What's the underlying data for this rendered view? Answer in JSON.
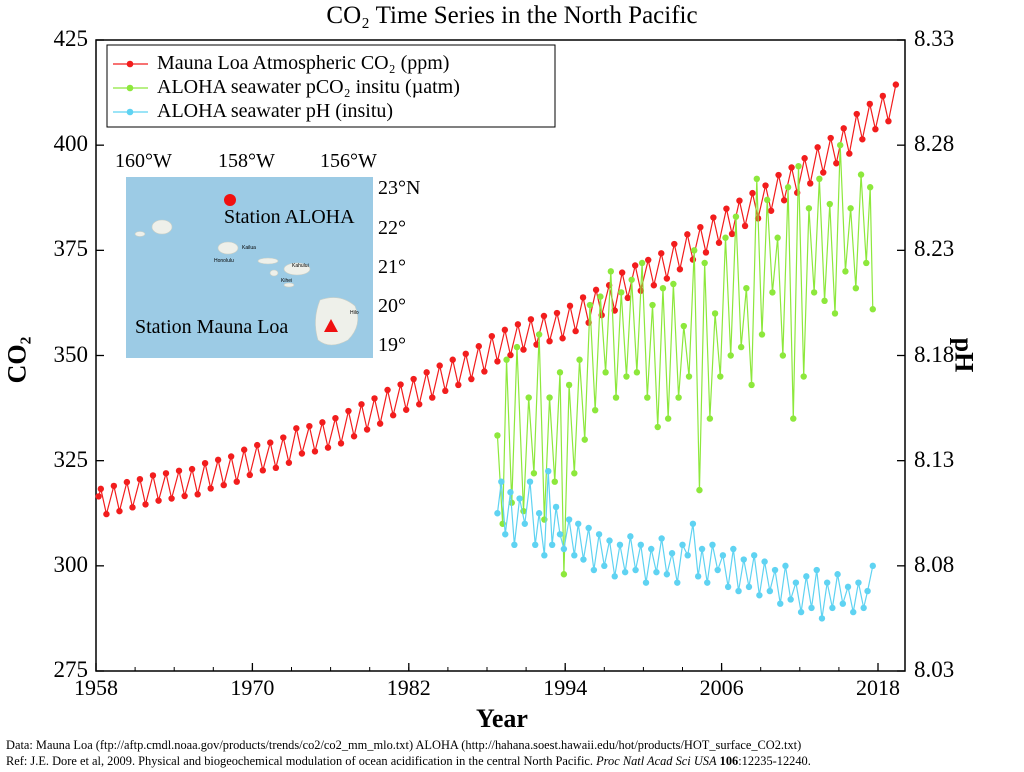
{
  "chart_data": {
    "type": "line",
    "title": "CO₂ Time Series in the North Pacific",
    "xlabel": "Year",
    "ylabel": "CO₂",
    "ylabel_right": "pH",
    "xlim": [
      1958,
      2020
    ],
    "ylim": [
      275,
      425
    ],
    "ylim_right": [
      8.03,
      8.33
    ],
    "x_ticks": [
      "1958",
      "1970",
      "1982",
      "1994",
      "2006",
      "2018"
    ],
    "y_ticks": [
      "275",
      "300",
      "325",
      "350",
      "375",
      "400",
      "425"
    ],
    "y_ticks_right": [
      "8.03",
      "8.08",
      "8.13",
      "8.18",
      "8.23",
      "8.28",
      "8.33"
    ],
    "grid": false,
    "legend_position": "top-left",
    "series": [
      {
        "name": "Mauna Loa Atmospheric CO₂ (ppm)",
        "color": "#f21d1d",
        "axis": "left",
        "points": [
          [
            1958.2,
            316.5
          ],
          [
            1958.37,
            318.3
          ],
          [
            1958.8,
            312.3
          ],
          [
            1959.37,
            319.0
          ],
          [
            1959.8,
            313.0
          ],
          [
            1960.37,
            319.9
          ],
          [
            1960.8,
            313.9
          ],
          [
            1961.37,
            320.6
          ],
          [
            1961.8,
            314.6
          ],
          [
            1962.37,
            321.5
          ],
          [
            1962.8,
            315.5
          ],
          [
            1963.37,
            322.0
          ],
          [
            1963.8,
            316.0
          ],
          [
            1964.37,
            322.6
          ],
          [
            1964.8,
            316.6
          ],
          [
            1965.37,
            323.0
          ],
          [
            1965.8,
            317.0
          ],
          [
            1966.37,
            324.4
          ],
          [
            1966.8,
            318.4
          ],
          [
            1967.37,
            325.2
          ],
          [
            1967.8,
            319.2
          ],
          [
            1968.37,
            326.0
          ],
          [
            1968.8,
            320.0
          ],
          [
            1969.37,
            327.6
          ],
          [
            1969.8,
            321.6
          ],
          [
            1970.37,
            328.7
          ],
          [
            1970.8,
            322.7
          ],
          [
            1971.37,
            329.3
          ],
          [
            1971.8,
            323.3
          ],
          [
            1972.37,
            330.5
          ],
          [
            1972.8,
            324.5
          ],
          [
            1973.37,
            332.7
          ],
          [
            1973.8,
            326.7
          ],
          [
            1974.37,
            333.2
          ],
          [
            1974.8,
            327.2
          ],
          [
            1975.37,
            334.1
          ],
          [
            1975.8,
            328.1
          ],
          [
            1976.37,
            335.1
          ],
          [
            1976.8,
            329.1
          ],
          [
            1977.37,
            336.8
          ],
          [
            1977.8,
            330.8
          ],
          [
            1978.37,
            338.4
          ],
          [
            1978.8,
            332.4
          ],
          [
            1979.37,
            339.8
          ],
          [
            1979.8,
            333.8
          ],
          [
            1980.37,
            341.8
          ],
          [
            1980.8,
            335.8
          ],
          [
            1981.37,
            343.1
          ],
          [
            1981.8,
            337.1
          ],
          [
            1982.37,
            344.4
          ],
          [
            1982.8,
            338.4
          ],
          [
            1983.37,
            346.0
          ],
          [
            1983.8,
            340.0
          ],
          [
            1984.37,
            347.6
          ],
          [
            1984.8,
            341.6
          ],
          [
            1985.37,
            349.0
          ],
          [
            1985.8,
            343.0
          ],
          [
            1986.37,
            350.4
          ],
          [
            1986.8,
            344.4
          ],
          [
            1987.37,
            352.2
          ],
          [
            1987.8,
            346.2
          ],
          [
            1988.37,
            354.6
          ],
          [
            1988.8,
            348.6
          ],
          [
            1989.37,
            356.1
          ],
          [
            1989.8,
            350.1
          ],
          [
            1990.37,
            357.4
          ],
          [
            1990.8,
            351.4
          ],
          [
            1991.37,
            358.6
          ],
          [
            1991.8,
            352.6
          ],
          [
            1992.37,
            359.4
          ],
          [
            1992.8,
            353.4
          ],
          [
            1993.37,
            360.1
          ],
          [
            1993.8,
            354.1
          ],
          [
            1994.37,
            361.8
          ],
          [
            1994.8,
            355.8
          ],
          [
            1995.37,
            363.8
          ],
          [
            1995.8,
            357.8
          ],
          [
            1996.37,
            365.6
          ],
          [
            1996.8,
            359.6
          ],
          [
            1997.37,
            366.7
          ],
          [
            1997.8,
            360.7
          ],
          [
            1998.37,
            369.7
          ],
          [
            1998.8,
            363.7
          ],
          [
            1999.37,
            371.4
          ],
          [
            1999.8,
            365.4
          ],
          [
            2000.37,
            372.7
          ],
          [
            2000.8,
            366.7
          ],
          [
            2001.37,
            374.3
          ],
          [
            2001.8,
            368.3
          ],
          [
            2002.37,
            376.5
          ],
          [
            2002.8,
            370.5
          ],
          [
            2003.37,
            378.8
          ],
          [
            2003.8,
            372.8
          ],
          [
            2004.37,
            380.5
          ],
          [
            2004.8,
            374.5
          ],
          [
            2005.37,
            382.8
          ],
          [
            2005.8,
            376.8
          ],
          [
            2006.37,
            384.9
          ],
          [
            2006.8,
            378.9
          ],
          [
            2007.37,
            386.8
          ],
          [
            2007.8,
            380.8
          ],
          [
            2008.37,
            388.6
          ],
          [
            2008.8,
            382.6
          ],
          [
            2009.37,
            390.4
          ],
          [
            2009.8,
            384.4
          ],
          [
            2010.37,
            392.9
          ],
          [
            2010.8,
            386.9
          ],
          [
            2011.37,
            394.7
          ],
          [
            2011.8,
            388.7
          ],
          [
            2012.37,
            396.9
          ],
          [
            2012.8,
            390.9
          ],
          [
            2013.37,
            399.5
          ],
          [
            2013.8,
            393.5
          ],
          [
            2014.37,
            401.7
          ],
          [
            2014.8,
            395.7
          ],
          [
            2015.37,
            404.0
          ],
          [
            2015.8,
            398.0
          ],
          [
            2016.37,
            407.4
          ],
          [
            2016.8,
            401.4
          ],
          [
            2017.37,
            409.8
          ],
          [
            2017.8,
            403.8
          ],
          [
            2018.37,
            411.7
          ],
          [
            2018.8,
            405.7
          ],
          [
            2019.37,
            414.4
          ]
        ]
      },
      {
        "name": "ALOHA seawater pCO₂ insitu (µatm)",
        "color": "#8de83c",
        "axis": "left",
        "points": [
          [
            1988.8,
            331
          ],
          [
            1989.2,
            310
          ],
          [
            1989.5,
            349
          ],
          [
            1989.9,
            315
          ],
          [
            1990.3,
            352
          ],
          [
            1990.8,
            313
          ],
          [
            1991.2,
            340
          ],
          [
            1991.6,
            322
          ],
          [
            1992.0,
            355
          ],
          [
            1992.4,
            311
          ],
          [
            1992.8,
            340
          ],
          [
            1993.2,
            320
          ],
          [
            1993.6,
            346
          ],
          [
            1993.9,
            298
          ],
          [
            1994.3,
            343
          ],
          [
            1994.7,
            322
          ],
          [
            1995.1,
            349
          ],
          [
            1995.5,
            330
          ],
          [
            1995.9,
            362
          ],
          [
            1996.3,
            337
          ],
          [
            1996.7,
            364
          ],
          [
            1997.1,
            346
          ],
          [
            1997.5,
            370
          ],
          [
            1997.9,
            340
          ],
          [
            1998.3,
            365
          ],
          [
            1998.7,
            345
          ],
          [
            1999.1,
            368
          ],
          [
            1999.5,
            346
          ],
          [
            1999.9,
            372
          ],
          [
            2000.3,
            340
          ],
          [
            2000.7,
            362
          ],
          [
            2001.1,
            333
          ],
          [
            2001.5,
            366
          ],
          [
            2001.9,
            335
          ],
          [
            2002.3,
            367
          ],
          [
            2002.7,
            340
          ],
          [
            2003.1,
            357
          ],
          [
            2003.5,
            345
          ],
          [
            2003.9,
            375
          ],
          [
            2004.3,
            318
          ],
          [
            2004.7,
            372
          ],
          [
            2005.1,
            335
          ],
          [
            2005.5,
            360
          ],
          [
            2005.9,
            345
          ],
          [
            2006.3,
            378
          ],
          [
            2006.7,
            350
          ],
          [
            2007.1,
            383
          ],
          [
            2007.5,
            352
          ],
          [
            2007.9,
            366
          ],
          [
            2008.3,
            343
          ],
          [
            2008.7,
            392
          ],
          [
            2009.1,
            355
          ],
          [
            2009.5,
            387
          ],
          [
            2009.9,
            365
          ],
          [
            2010.3,
            378
          ],
          [
            2010.7,
            350
          ],
          [
            2011.1,
            390
          ],
          [
            2011.5,
            335
          ],
          [
            2011.9,
            395
          ],
          [
            2012.3,
            345
          ],
          [
            2012.7,
            385
          ],
          [
            2013.1,
            365
          ],
          [
            2013.5,
            392
          ],
          [
            2013.9,
            363
          ],
          [
            2014.3,
            386
          ],
          [
            2014.7,
            360
          ],
          [
            2015.1,
            400
          ],
          [
            2015.5,
            370
          ],
          [
            2015.9,
            385
          ],
          [
            2016.3,
            366
          ],
          [
            2016.7,
            393
          ],
          [
            2017.1,
            372
          ],
          [
            2017.4,
            390
          ],
          [
            2017.6,
            361
          ]
        ]
      },
      {
        "name": "ALOHA seawater pH (insitu)",
        "color": "#5fd3f2",
        "axis": "right",
        "points": [
          [
            1988.8,
            8.105
          ],
          [
            1989.1,
            8.12
          ],
          [
            1989.4,
            8.095
          ],
          [
            1989.8,
            8.115
          ],
          [
            1990.1,
            8.09
          ],
          [
            1990.5,
            8.112
          ],
          [
            1990.9,
            8.1
          ],
          [
            1991.3,
            8.12
          ],
          [
            1991.7,
            8.09
          ],
          [
            1992.0,
            8.105
          ],
          [
            1992.4,
            8.085
          ],
          [
            1992.7,
            8.125
          ],
          [
            1993.0,
            8.09
          ],
          [
            1993.3,
            8.108
          ],
          [
            1993.6,
            8.095
          ],
          [
            1993.9,
            8.088
          ],
          [
            1994.3,
            8.102
          ],
          [
            1994.7,
            8.085
          ],
          [
            1995.0,
            8.1
          ],
          [
            1995.4,
            8.083
          ],
          [
            1995.8,
            8.098
          ],
          [
            1996.2,
            8.078
          ],
          [
            1996.6,
            8.095
          ],
          [
            1997.0,
            8.08
          ],
          [
            1997.4,
            8.092
          ],
          [
            1997.8,
            8.075
          ],
          [
            1998.2,
            8.09
          ],
          [
            1998.6,
            8.077
          ],
          [
            1999.0,
            8.094
          ],
          [
            1999.4,
            8.078
          ],
          [
            1999.8,
            8.09
          ],
          [
            2000.2,
            8.072
          ],
          [
            2000.6,
            8.088
          ],
          [
            2001.0,
            8.077
          ],
          [
            2001.4,
            8.093
          ],
          [
            2001.8,
            8.076
          ],
          [
            2002.2,
            8.086
          ],
          [
            2002.6,
            8.072
          ],
          [
            2003.0,
            8.09
          ],
          [
            2003.4,
            8.085
          ],
          [
            2003.8,
            8.1
          ],
          [
            2004.2,
            8.075
          ],
          [
            2004.5,
            8.088
          ],
          [
            2004.9,
            8.072
          ],
          [
            2005.3,
            8.09
          ],
          [
            2005.7,
            8.078
          ],
          [
            2006.1,
            8.085
          ],
          [
            2006.5,
            8.07
          ],
          [
            2006.9,
            8.088
          ],
          [
            2007.3,
            8.068
          ],
          [
            2007.7,
            8.083
          ],
          [
            2008.1,
            8.07
          ],
          [
            2008.5,
            8.085
          ],
          [
            2008.9,
            8.066
          ],
          [
            2009.3,
            8.082
          ],
          [
            2009.7,
            8.068
          ],
          [
            2010.1,
            8.078
          ],
          [
            2010.5,
            8.062
          ],
          [
            2010.9,
            8.08
          ],
          [
            2011.3,
            8.064
          ],
          [
            2011.7,
            8.072
          ],
          [
            2012.1,
            8.058
          ],
          [
            2012.5,
            8.075
          ],
          [
            2012.9,
            8.06
          ],
          [
            2013.3,
            8.078
          ],
          [
            2013.7,
            8.055
          ],
          [
            2014.1,
            8.072
          ],
          [
            2014.5,
            8.06
          ],
          [
            2014.9,
            8.076
          ],
          [
            2015.3,
            8.062
          ],
          [
            2015.7,
            8.07
          ],
          [
            2016.1,
            8.058
          ],
          [
            2016.5,
            8.072
          ],
          [
            2016.9,
            8.06
          ],
          [
            2017.2,
            8.068
          ],
          [
            2017.6,
            8.08
          ]
        ]
      }
    ]
  },
  "inset_map": {
    "lon_labels": [
      "160°W",
      "158°W",
      "156°W"
    ],
    "lat_labels": [
      "23°N",
      "22°",
      "21°",
      "20°",
      "19°"
    ],
    "station_aloha": "Station ALOHA",
    "station_mauna_loa": "Station Mauna Loa",
    "towns": [
      "Kailua",
      "Honolulu",
      "Kahului",
      "Kihei",
      "Hilo"
    ],
    "water_color": "#9ccbe5"
  },
  "footer": {
    "line1": "Data: Mauna Loa (ftp://aftp.cmdl.noaa.gov/products/trends/co2/co2_mm_mlo.txt)  ALOHA (http://hahana.soest.hawaii.edu/hot/products/HOT_surface_CO2.txt)",
    "line2_a": "Ref: J.E. Dore et al, 2009. Physical and biogeochemical modulation of ocean acidification in the central North Pacific. ",
    "line2_journal": "Proc Natl Acad Sci USA",
    "line2_volume": " 106",
    "line2_pages": ":12235-12240."
  }
}
